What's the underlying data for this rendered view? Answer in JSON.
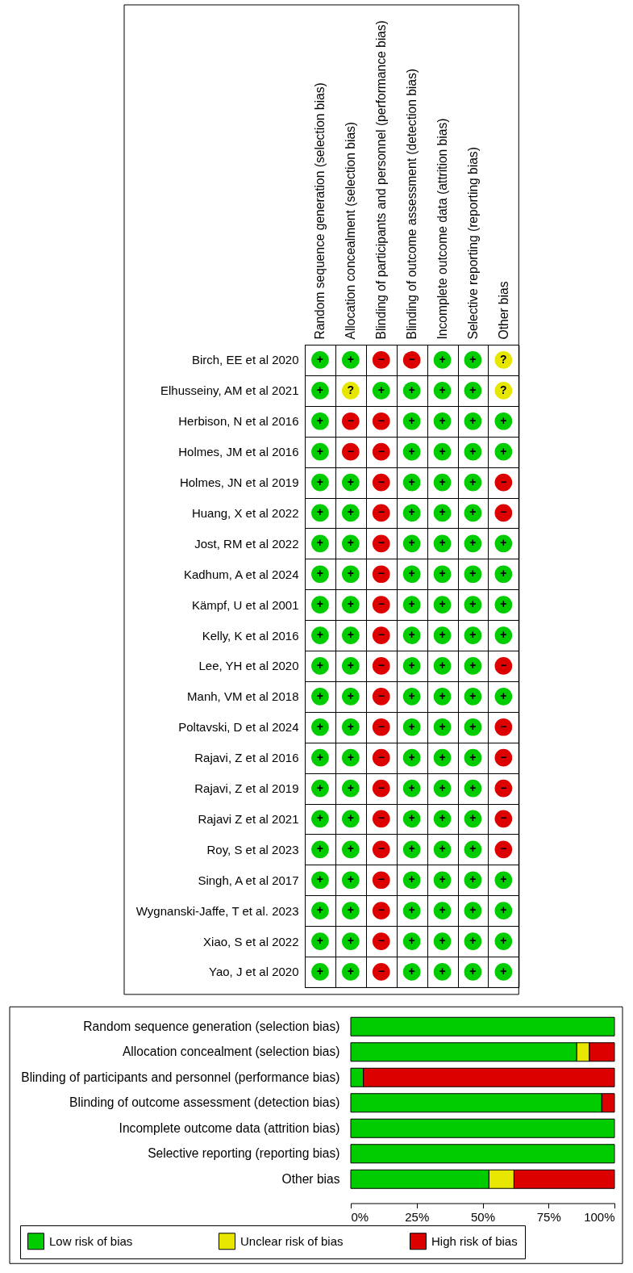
{
  "chart_data": [
    {
      "type": "heatmap",
      "categories": [
        "Random sequence generation (selection bias)",
        "Allocation concealment (selection bias)",
        "Blinding of participants and personnel (performance bias)",
        "Blinding of outcome assessment (detection bias)",
        "Incomplete outcome data (attrition bias)",
        "Selective reporting (reporting bias)",
        "Other bias"
      ],
      "y_categories": [
        "Birch, EE et al 2020",
        "Elhusseiny, AM et al 2021",
        "Herbison, N et al 2016",
        "Holmes, JM et al 2016",
        "Holmes, JN et al 2019",
        "Huang, X et al 2022",
        "Jost, RM et al 2022",
        "Kadhum, A et al 2024",
        "Kämpf, U et al 2001",
        "Kelly, K et al 2016",
        "Lee, YH et al 2020",
        "Manh, VM et al 2018",
        "Poltavski, D et al 2024",
        "Rajavi, Z et al 2016",
        "Rajavi, Z et al 2019",
        "Rajavi Z et al 2021",
        "Roy, S et al 2023",
        "Singh, A et al 2017",
        "Wygnanski-Jaffe, T et al. 2023",
        "Xiao, S et al 2022",
        "Yao, J et al 2020"
      ],
      "cells": [
        [
          "+",
          "+",
          "−",
          "−",
          "+",
          "+",
          "?"
        ],
        [
          "+",
          "?",
          "+",
          "+",
          "+",
          "+",
          "?"
        ],
        [
          "+",
          "−",
          "−",
          "+",
          "+",
          "+",
          "+"
        ],
        [
          "+",
          "−",
          "−",
          "+",
          "+",
          "+",
          "+"
        ],
        [
          "+",
          "+",
          "−",
          "+",
          "+",
          "+",
          "−"
        ],
        [
          "+",
          "+",
          "−",
          "+",
          "+",
          "+",
          "−"
        ],
        [
          "+",
          "+",
          "−",
          "+",
          "+",
          "+",
          "+"
        ],
        [
          "+",
          "+",
          "−",
          "+",
          "+",
          "+",
          "+"
        ],
        [
          "+",
          "+",
          "−",
          "+",
          "+",
          "+",
          "+"
        ],
        [
          "+",
          "+",
          "−",
          "+",
          "+",
          "+",
          "+"
        ],
        [
          "+",
          "+",
          "−",
          "+",
          "+",
          "+",
          "−"
        ],
        [
          "+",
          "+",
          "−",
          "+",
          "+",
          "+",
          "+"
        ],
        [
          "+",
          "+",
          "−",
          "+",
          "+",
          "+",
          "−"
        ],
        [
          "+",
          "+",
          "−",
          "+",
          "+",
          "+",
          "−"
        ],
        [
          "+",
          "+",
          "−",
          "+",
          "+",
          "+",
          "−"
        ],
        [
          "+",
          "+",
          "−",
          "+",
          "+",
          "+",
          "−"
        ],
        [
          "+",
          "+",
          "−",
          "+",
          "+",
          "+",
          "−"
        ],
        [
          "+",
          "+",
          "−",
          "+",
          "+",
          "+",
          "+"
        ],
        [
          "+",
          "+",
          "−",
          "+",
          "+",
          "+",
          "+"
        ],
        [
          "+",
          "+",
          "−",
          "+",
          "+",
          "+",
          "+"
        ],
        [
          "+",
          "+",
          "−",
          "+",
          "+",
          "+",
          "+"
        ]
      ],
      "colors": [
        [
          "#00cc00",
          "#00cc00",
          "#dd0000",
          "#dd0000",
          "#00cc00",
          "#00cc00",
          "#e6e600"
        ],
        [
          "#00cc00",
          "#e6e600",
          "#00cc00",
          "#00cc00",
          "#00cc00",
          "#00cc00",
          "#e6e600"
        ],
        [
          "#00cc00",
          "#dd0000",
          "#dd0000",
          "#00cc00",
          "#00cc00",
          "#00cc00",
          "#00cc00"
        ],
        [
          "#00cc00",
          "#dd0000",
          "#dd0000",
          "#00cc00",
          "#00cc00",
          "#00cc00",
          "#00cc00"
        ],
        [
          "#00cc00",
          "#00cc00",
          "#dd0000",
          "#00cc00",
          "#00cc00",
          "#00cc00",
          "#dd0000"
        ],
        [
          "#00cc00",
          "#00cc00",
          "#dd0000",
          "#00cc00",
          "#00cc00",
          "#00cc00",
          "#dd0000"
        ],
        [
          "#00cc00",
          "#00cc00",
          "#dd0000",
          "#00cc00",
          "#00cc00",
          "#00cc00",
          "#00cc00"
        ],
        [
          "#00cc00",
          "#00cc00",
          "#dd0000",
          "#00cc00",
          "#00cc00",
          "#00cc00",
          "#00cc00"
        ],
        [
          "#00cc00",
          "#00cc00",
          "#dd0000",
          "#00cc00",
          "#00cc00",
          "#00cc00",
          "#00cc00"
        ],
        [
          "#00cc00",
          "#00cc00",
          "#dd0000",
          "#00cc00",
          "#00cc00",
          "#00cc00",
          "#00cc00"
        ],
        [
          "#00cc00",
          "#00cc00",
          "#dd0000",
          "#00cc00",
          "#00cc00",
          "#00cc00",
          "#dd0000"
        ],
        [
          "#00cc00",
          "#00cc00",
          "#dd0000",
          "#00cc00",
          "#00cc00",
          "#00cc00",
          "#00cc00"
        ],
        [
          "#00cc00",
          "#00cc00",
          "#dd0000",
          "#00cc00",
          "#00cc00",
          "#00cc00",
          "#dd0000"
        ],
        [
          "#00cc00",
          "#00cc00",
          "#dd0000",
          "#00cc00",
          "#00cc00",
          "#00cc00",
          "#dd0000"
        ],
        [
          "#00cc00",
          "#00cc00",
          "#dd0000",
          "#00cc00",
          "#00cc00",
          "#00cc00",
          "#dd0000"
        ],
        [
          "#00cc00",
          "#00cc00",
          "#dd0000",
          "#00cc00",
          "#00cc00",
          "#00cc00",
          "#dd0000"
        ],
        [
          "#00cc00",
          "#00cc00",
          "#dd0000",
          "#00cc00",
          "#00cc00",
          "#00cc00",
          "#dd0000"
        ],
        [
          "#00cc00",
          "#00cc00",
          "#dd0000",
          "#00cc00",
          "#00cc00",
          "#00cc00",
          "#00cc00"
        ],
        [
          "#00cc00",
          "#00cc00",
          "#dd0000",
          "#00cc00",
          "#00cc00",
          "#00cc00",
          "#00cc00"
        ],
        [
          "#00cc00",
          "#00cc00",
          "#dd0000",
          "#00cc00",
          "#00cc00",
          "#00cc00",
          "#00cc00"
        ],
        [
          "#00cc00",
          "#00cc00",
          "#dd0000",
          "#00cc00",
          "#00cc00",
          "#00cc00",
          "#00cc00"
        ]
      ],
      "grid": true
    },
    {
      "type": "bar",
      "orientation": "horizontal",
      "stacked": true,
      "categories": [
        "Random sequence generation (selection bias)",
        "Allocation concealment (selection bias)",
        "Blinding of participants and personnel (performance bias)",
        "Blinding of outcome assessment (detection bias)",
        "Incomplete outcome data (attrition bias)",
        "Selective reporting (reporting bias)",
        "Other bias"
      ],
      "series": [
        {
          "name": "Low risk of bias",
          "color": "#00cc00",
          "values": [
            100,
            85.7,
            4.8,
            95.2,
            100,
            100,
            52.4
          ]
        },
        {
          "name": "Unclear risk of bias",
          "color": "#e6e600",
          "values": [
            0,
            4.8,
            0,
            0,
            0,
            0,
            9.5
          ]
        },
        {
          "name": "High risk of bias",
          "color": "#dd0000",
          "values": [
            0,
            9.5,
            95.2,
            4.8,
            0,
            0,
            38.1
          ]
        }
      ],
      "xlim": [
        0,
        100
      ],
      "xticks": [
        {
          "value": 0,
          "label": "0%"
        },
        {
          "value": 25,
          "label": "25%"
        },
        {
          "value": 50,
          "label": "50%"
        },
        {
          "value": 75,
          "label": "75%"
        },
        {
          "value": 100,
          "label": "100%"
        }
      ],
      "legend": "bottom"
    }
  ]
}
